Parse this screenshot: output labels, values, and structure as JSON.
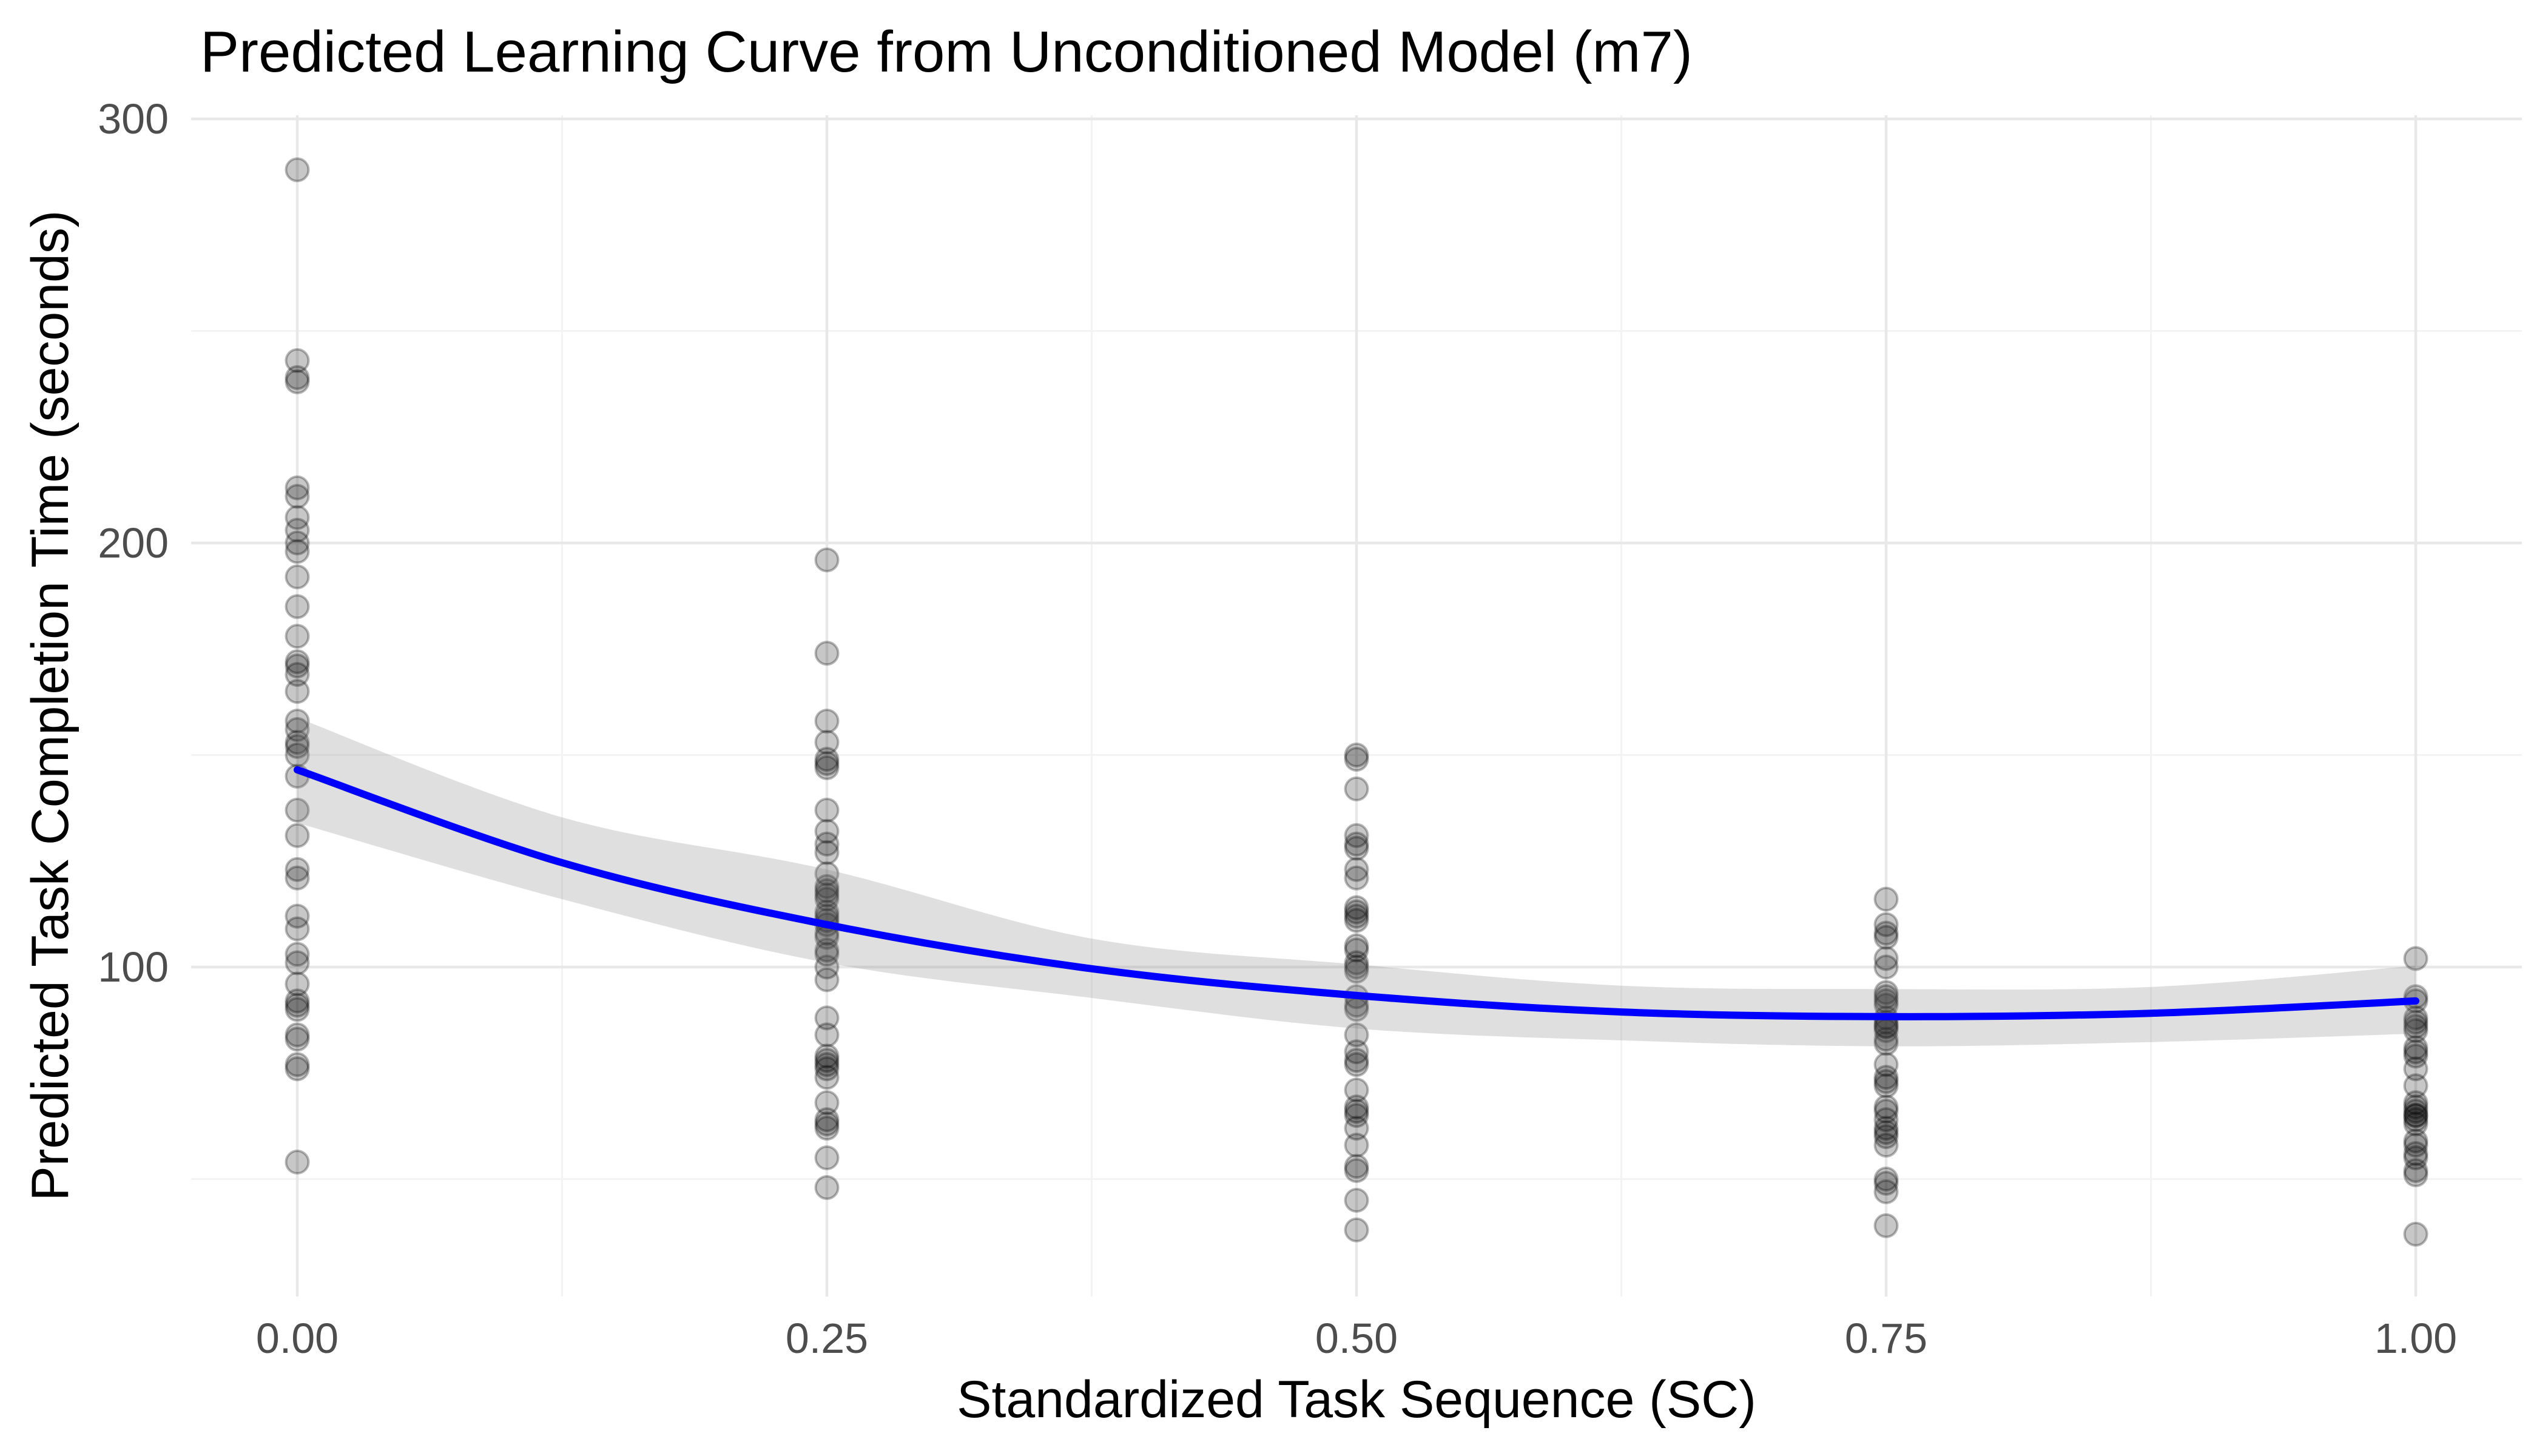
{
  "title": "Predicted Learning Curve from Unconditioned Model (m7)",
  "x_axis": {
    "label": "Standardized Task Sequence (SC)",
    "ticks": [
      {
        "value": 0.0,
        "label": "0.00"
      },
      {
        "value": 0.25,
        "label": "0.25"
      },
      {
        "value": 0.5,
        "label": "0.50"
      },
      {
        "value": 0.75,
        "label": "0.75"
      },
      {
        "value": 1.0,
        "label": "1.00"
      }
    ],
    "minor_ticks": [
      0.125,
      0.375,
      0.625,
      0.875
    ]
  },
  "y_axis": {
    "label": "Predicted Task Completion Time (seconds)",
    "ticks": [
      {
        "value": 100,
        "label": "100"
      },
      {
        "value": 200,
        "label": "200"
      },
      {
        "value": 300,
        "label": "300"
      }
    ],
    "minor_ticks": [
      50,
      150,
      250
    ]
  },
  "colors": {
    "smooth_line": "#0000FF",
    "ribbon_fill": "#808080",
    "ribbon_opacity": 0.25,
    "point_color": "#000000",
    "point_fill_opacity": 0.22,
    "point_stroke_opacity": 0.28,
    "grid_major": "#E8E8E8",
    "grid_minor": "#F3F3F3",
    "tick_label_color": "#4D4D4D",
    "title_color": "#000000",
    "background": "#FFFFFF"
  },
  "chart_data": {
    "type": "scatter",
    "title": "Predicted Learning Curve from Unconditioned Model (m7)",
    "xlabel": "Standardized Task Sequence (SC)",
    "ylabel": "Predicted Task Completion Time (seconds)",
    "xlim": [
      -0.05,
      1.05
    ],
    "ylim": [
      22,
      301
    ],
    "grid": true,
    "legend": false,
    "columns": [
      {
        "x": 0.0,
        "values": [
          288,
          243,
          239,
          238,
          213,
          211,
          206,
          203,
          200,
          198,
          192,
          185,
          178,
          172,
          171,
          169,
          165,
          158,
          156,
          153,
          152,
          150,
          145,
          137,
          131,
          123,
          121,
          112,
          109,
          103,
          101,
          96,
          92,
          91,
          90,
          84,
          83,
          77,
          76,
          54
        ]
      },
      {
        "x": 0.25,
        "values": [
          196,
          174,
          158,
          153,
          149,
          148,
          147,
          137,
          132,
          129,
          127,
          122,
          119,
          118,
          117,
          116,
          113,
          112,
          111,
          110,
          108,
          107,
          104,
          103,
          100,
          97,
          88,
          84,
          79,
          78,
          77,
          76,
          74,
          68,
          64,
          63,
          62,
          55,
          48
        ]
      },
      {
        "x": 0.5,
        "values": [
          150,
          149,
          142,
          131,
          129,
          128,
          123,
          121,
          114,
          113,
          112,
          111,
          105,
          104,
          101,
          100,
          99,
          93,
          91,
          90,
          84,
          80,
          78,
          77,
          71,
          67,
          66,
          65,
          62,
          58,
          53,
          52,
          45,
          38
        ]
      },
      {
        "x": 0.75,
        "values": [
          116,
          110,
          108,
          107,
          102,
          100,
          94,
          93,
          92,
          91,
          88,
          87,
          86,
          86,
          85,
          83,
          82,
          77,
          74,
          73,
          72,
          67,
          66,
          64,
          62,
          61,
          60,
          58,
          50,
          49,
          47,
          39
        ]
      },
      {
        "x": 1.0,
        "values": [
          102,
          93,
          92,
          88,
          87,
          86,
          85,
          81,
          80,
          79,
          76,
          72,
          68,
          67,
          66,
          65,
          65,
          64,
          63,
          59,
          58,
          56,
          55,
          52,
          51,
          37
        ]
      }
    ],
    "smooth": {
      "name": "loess-fit",
      "x": [
        0.0,
        0.125,
        0.25,
        0.375,
        0.5,
        0.625,
        0.75,
        0.875,
        1.0
      ],
      "y": [
        146.5,
        124.6,
        110.0,
        99.6,
        93.3,
        89.4,
        88.3,
        89.1,
        92.0
      ]
    },
    "ribbon": {
      "name": "confidence-band",
      "x": [
        0.0,
        0.125,
        0.25,
        0.375,
        0.5,
        0.625,
        0.75,
        0.875,
        1.0
      ],
      "upper": [
        158.8,
        135.3,
        123.0,
        106.7,
        100.6,
        95.6,
        94.8,
        95.3,
        100.3
      ],
      "lower": [
        134.0,
        116.0,
        101.0,
        92.7,
        85.5,
        82.7,
        81.3,
        82.3,
        84.3
      ]
    }
  }
}
